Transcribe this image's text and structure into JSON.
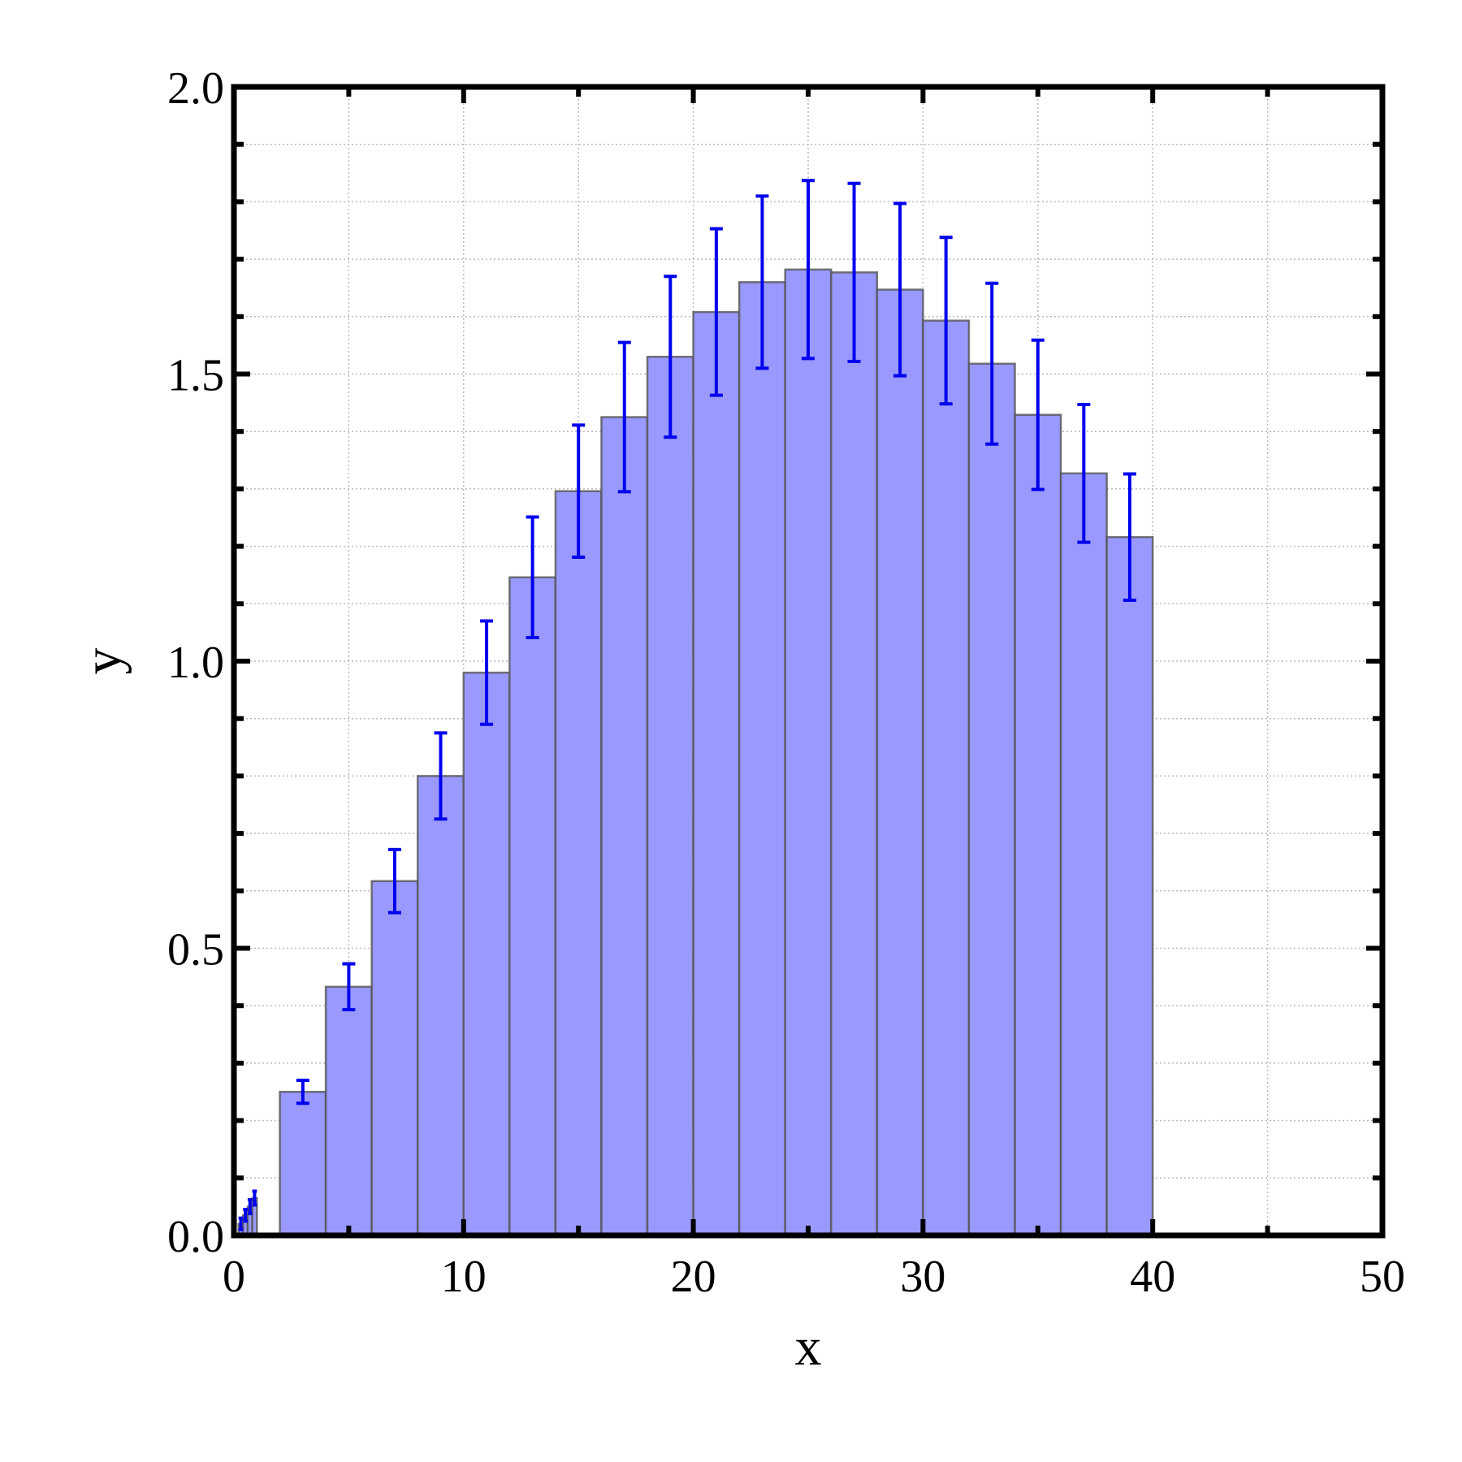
{
  "chart_data": {
    "type": "histogram",
    "xlabel": "x",
    "ylabel": "y",
    "bins": [
      0.2,
      0.4,
      0.6,
      0.8,
      1.0,
      2,
      4,
      6,
      8,
      10,
      12,
      14,
      16,
      18,
      20,
      22,
      24,
      26,
      28,
      30,
      32,
      34,
      36,
      38,
      40
    ],
    "values": [
      0.02,
      0.035,
      0.05,
      0.065,
      null,
      0.25,
      0.433,
      0.617,
      0.8,
      0.98,
      1.146,
      1.296,
      1.425,
      1.53,
      1.608,
      1.66,
      1.682,
      1.677,
      1.647,
      1.593,
      1.518,
      1.429,
      1.327,
      1.216
    ],
    "errors": [
      0.01,
      0.01,
      0.012,
      0.012,
      null,
      0.02,
      0.04,
      0.055,
      0.075,
      0.09,
      0.105,
      0.115,
      0.13,
      0.14,
      0.145,
      0.15,
      0.155,
      0.155,
      0.15,
      0.145,
      0.14,
      0.13,
      0.12,
      0.11
    ],
    "color": "#9999ff",
    "edge_color": "#555555",
    "error_color": "#0000ee",
    "xlim": [
      0,
      50
    ],
    "ylim": [
      0,
      2.0
    ],
    "xticks": [
      0,
      10,
      20,
      30,
      40,
      50
    ],
    "yticks": [
      {
        "value": 0,
        "label": "0.0"
      },
      {
        "value": 0.5,
        "label": "0.5"
      },
      {
        "value": 1,
        "label": "1.0"
      },
      {
        "value": 1.5,
        "label": "1.5"
      },
      {
        "value": 2,
        "label": "2.0"
      }
    ],
    "xticks_minor": [
      5,
      15,
      25,
      35,
      45
    ],
    "yticks_minor": [
      0.1,
      0.2,
      0.3,
      0.4,
      0.6,
      0.7,
      0.8,
      0.9,
      1.1,
      1.2,
      1.3,
      1.4,
      1.6,
      1.7,
      1.8,
      1.9
    ],
    "grid": true
  }
}
